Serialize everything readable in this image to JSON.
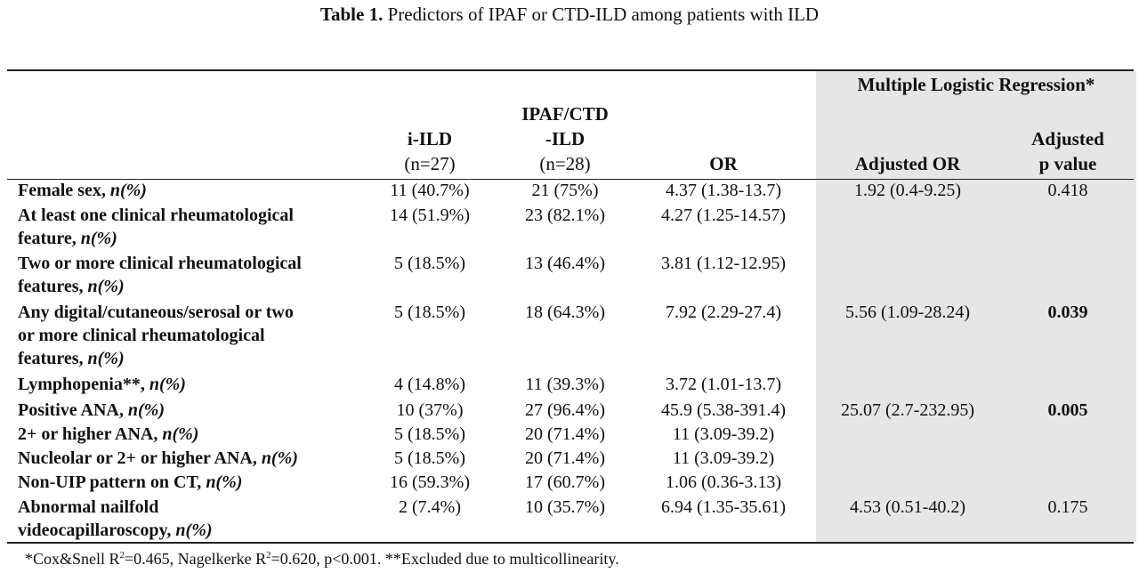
{
  "title": {
    "prefix": "Table 1.",
    "text": " Predictors of IPAF or CTD-ILD among patients with ILD"
  },
  "header": {
    "group": "Multiple Logistic Regression*",
    "col1": "i-ILD",
    "col1_n": "(n=27)",
    "col2a": "IPAF/CTD",
    "col2b": "-ILD",
    "col2_n": "(n=28)",
    "col3": "OR",
    "col4": "Adjusted OR",
    "col5a": "Adjusted",
    "col5b": "p value"
  },
  "rows": [
    {
      "label1": "Female sex, ",
      "label1_it": "n(%)",
      "label2": "",
      "label2_it": "",
      "label3": "",
      "label3_it": "",
      "iild": "11 (40.7%)",
      "ipaf": "21 (75%)",
      "or": "4.37 (1.38-13.7)",
      "adj_or": "1.92 (0.4-9.25)",
      "p": "0.418"
    },
    {
      "label1": "At least one clinical rheumatological",
      "label1_it": "",
      "label2": "feature, ",
      "label2_it": "n(%)",
      "label3": "",
      "label3_it": "",
      "iild": "14 (51.9%)",
      "ipaf": "23 (82.1%)",
      "or": "4.27 (1.25-14.57)",
      "adj_or": "",
      "p": ""
    },
    {
      "label1": "Two or more clinical rheumatological",
      "label1_it": "",
      "label2": "features, ",
      "label2_it": "n(%)",
      "label3": "",
      "label3_it": "",
      "iild": "5 (18.5%)",
      "ipaf": "13 (46.4%)",
      "or": "3.81 (1.12-12.95)",
      "adj_or": "",
      "p": ""
    },
    {
      "label1": "Any digital/cutaneous/serosal or two",
      "label1_it": "",
      "label2": "or more clinical rheumatological",
      "label2_it": "",
      "label3": "features, ",
      "label3_it": "n(%)",
      "iild": "5 (18.5%)",
      "ipaf": "18 (64.3%)",
      "or": "7.92 (2.29-27.4)",
      "adj_or": "5.56 (1.09-28.24)",
      "p": "0.039"
    },
    {
      "label1": "Lymphopenia**, ",
      "label1_it": "n(%)",
      "label2": "",
      "label2_it": "",
      "label3": "",
      "label3_it": "",
      "iild": "4 (14.8%)",
      "ipaf": "11 (39.3%)",
      "or": "3.72 (1.01-13.7)",
      "adj_or": "",
      "p": ""
    },
    {
      "label1": "Positive ANA, ",
      "label1_it": "n(%)",
      "label2": "",
      "label2_it": "",
      "label3": "",
      "label3_it": "",
      "iild": "10 (37%)",
      "ipaf": "27 (96.4%)",
      "or": "45.9 (5.38-391.4)",
      "adj_or": "25.07 (2.7-232.95)",
      "p": "0.005"
    },
    {
      "label1": "2+ or higher ANA, ",
      "label1_it": "n(%)",
      "label2": "",
      "label2_it": "",
      "label3": "",
      "label3_it": "",
      "iild": "5 (18.5%)",
      "ipaf": "20 (71.4%)",
      "or": "11 (3.09-39.2)",
      "adj_or": "",
      "p": ""
    },
    {
      "label1": "Nucleolar or 2+ or higher ANA, ",
      "label1_it": "n(%)",
      "label2": "",
      "label2_it": "",
      "label3": "",
      "label3_it": "",
      "iild": "5 (18.5%)",
      "ipaf": "20 (71.4%)",
      "or": "11 (3.09-39.2)",
      "adj_or": "",
      "p": ""
    },
    {
      "label1": "Non-UIP pattern on CT, ",
      "label1_it": "n(%)",
      "label2": "",
      "label2_it": "",
      "label3": "",
      "label3_it": "",
      "iild": "16 (59.3%)",
      "ipaf": "17 (60.7%)",
      "or": "1.06 (0.36-3.13)",
      "adj_or": "",
      "p": ""
    },
    {
      "label1": "Abnormal nailfold",
      "label1_it": "",
      "label2": "videocapillaroscopy, ",
      "label2_it": "n(%)",
      "label3": "",
      "label3_it": "",
      "iild": "2 (7.4%)",
      "ipaf": "10 (35.7%)",
      "or": "6.94 (1.35-35.61)",
      "adj_or": "4.53 (0.51-40.2)",
      "p": "0.175"
    }
  ],
  "footnote": {
    "part1": "*Cox&Snell R",
    "sup1": "2",
    "part2": "=0.465, Nagelkerke R",
    "sup2": "2",
    "part3": "=0.620, p<0.001. **Excluded due to multicollinearity."
  }
}
